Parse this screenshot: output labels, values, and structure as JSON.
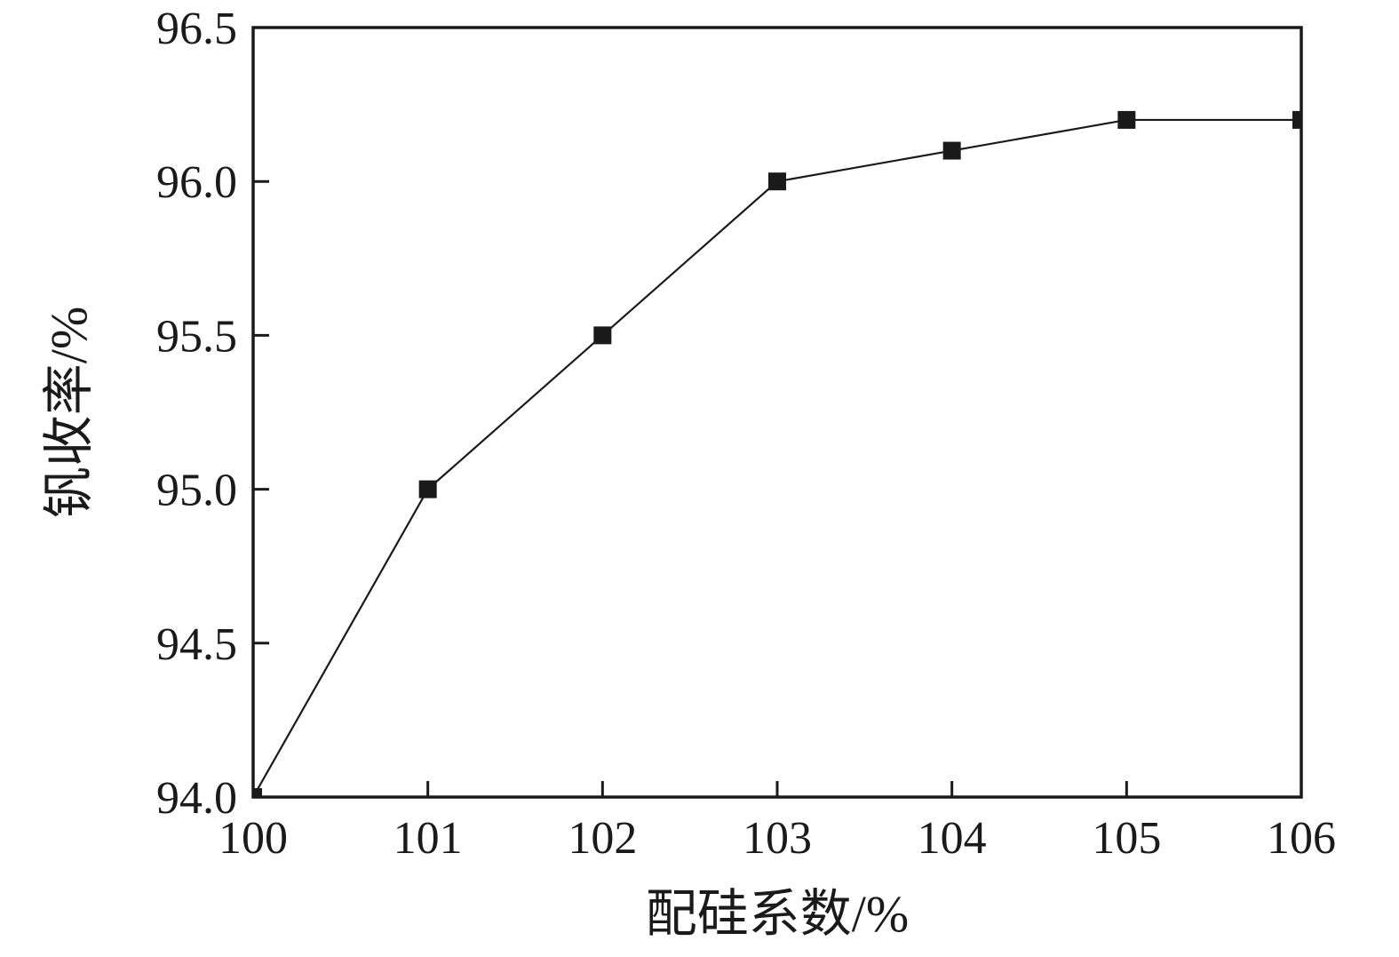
{
  "chart_data": {
    "type": "line",
    "title": "",
    "xlabel": "配硅系数/%",
    "ylabel": "钒收率/%",
    "x": [
      100,
      101,
      102,
      103,
      104,
      105,
      106
    ],
    "series": [
      {
        "name": "钒收率",
        "values": [
          94.0,
          95.0,
          95.5,
          96.0,
          96.1,
          96.2,
          96.2
        ]
      }
    ],
    "xlim": [
      100,
      106
    ],
    "ylim": [
      94.0,
      96.5
    ],
    "xticks": [
      100,
      101,
      102,
      103,
      104,
      105,
      106
    ],
    "xtick_labels": [
      "100",
      "101",
      "102",
      "103",
      "104",
      "105",
      "106"
    ],
    "yticks": [
      94.0,
      94.5,
      95.0,
      95.5,
      96.0,
      96.5
    ],
    "ytick_labels": [
      "94.0",
      "94.5",
      "95.0",
      "95.5",
      "96.0",
      "96.5"
    ],
    "grid": false,
    "legend": false,
    "legend_position": "none",
    "marker": "square",
    "marker_size": 20,
    "line_color": "#1a1a1a",
    "marker_color": "#1a1a1a",
    "axis_color": "#1a1a1a",
    "background_color": "#ffffff",
    "ticks_direction": "in"
  }
}
